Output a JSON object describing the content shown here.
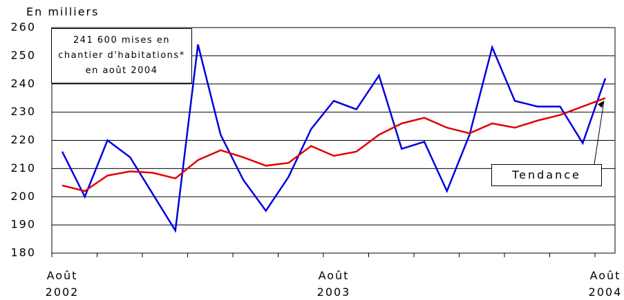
{
  "chart_data": {
    "type": "line",
    "ylabel": "En milliers",
    "annotation": "241 600 mises en chantier d'habitations* en août 2004",
    "trend_label": "Tendance",
    "categories": [
      "Août 2002",
      null,
      null,
      null,
      null,
      null,
      null,
      null,
      null,
      null,
      null,
      null,
      "Août 2003",
      null,
      null,
      null,
      null,
      null,
      null,
      null,
      null,
      null,
      null,
      null,
      "Août 2004"
    ],
    "series": [
      {
        "color": "#0000e0",
        "values": [
          216,
          200,
          220,
          214,
          201,
          188,
          254,
          222,
          206,
          195,
          207,
          224,
          234,
          231,
          243,
          217,
          219.5,
          202,
          222,
          253,
          234,
          232,
          232,
          219,
          242
        ]
      },
      {
        "color": "#e00000",
        "values": [
          204,
          202,
          207.5,
          209,
          208.5,
          206.5,
          213,
          216.5,
          214,
          211,
          212,
          218,
          214.5,
          216,
          222,
          226,
          228,
          224.5,
          222.5,
          226,
          224.5,
          227,
          229,
          232,
          235
        ]
      }
    ],
    "ylim": [
      180,
      260
    ],
    "yticks": [
      180,
      190,
      200,
      210,
      220,
      230,
      240,
      250,
      260
    ],
    "grid": true
  }
}
